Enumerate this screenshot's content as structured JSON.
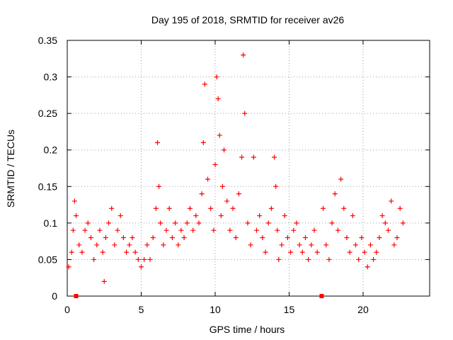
{
  "chart_data": {
    "type": "scatter",
    "title": "Day 195 of 2018, SRMTID for receiver av26",
    "xlabel": "GPS time / hours",
    "ylabel": "SRMTID / TECUs",
    "xlim": [
      0,
      24.5
    ],
    "ylim": [
      0,
      0.35
    ],
    "xticks": [
      0,
      5,
      10,
      15,
      20
    ],
    "xtick_labels": [
      "0",
      "5",
      "10",
      "15",
      "20"
    ],
    "yticks": [
      0,
      0.05,
      0.1,
      0.15,
      0.2,
      0.25,
      0.3,
      0.35
    ],
    "ytick_labels": [
      "0",
      "0.05",
      "0.1",
      "0.15",
      "0.2",
      "0.25",
      "0.3",
      "0.35"
    ],
    "grid": true,
    "marker": "plus",
    "color": "#ff0000",
    "gap_marks_x": [
      0.6,
      17.2
    ],
    "series": [
      {
        "name": "SRMTID",
        "x": [
          0.1,
          0.3,
          0.4,
          0.5,
          0.6,
          0.8,
          1.0,
          1.2,
          1.4,
          1.6,
          1.8,
          2.0,
          2.2,
          2.4,
          2.5,
          2.6,
          2.8,
          3.0,
          3.2,
          3.4,
          3.6,
          3.8,
          4.0,
          4.2,
          4.4,
          4.6,
          4.8,
          5.0,
          5.2,
          5.4,
          5.6,
          5.8,
          6.0,
          6.1,
          6.2,
          6.3,
          6.5,
          6.7,
          6.9,
          7.1,
          7.3,
          7.5,
          7.7,
          7.9,
          8.1,
          8.3,
          8.5,
          8.7,
          8.9,
          9.1,
          9.2,
          9.3,
          9.5,
          9.7,
          9.9,
          10.0,
          10.1,
          10.2,
          10.3,
          10.4,
          10.5,
          10.6,
          10.8,
          11.0,
          11.2,
          11.4,
          11.6,
          11.8,
          11.9,
          12.0,
          12.2,
          12.4,
          12.6,
          12.8,
          13.0,
          13.2,
          13.4,
          13.6,
          13.8,
          14.0,
          14.1,
          14.2,
          14.3,
          14.5,
          14.7,
          14.9,
          15.1,
          15.3,
          15.5,
          15.7,
          15.9,
          16.1,
          16.3,
          16.5,
          16.7,
          16.9,
          17.3,
          17.5,
          17.7,
          17.9,
          18.1,
          18.3,
          18.5,
          18.7,
          18.9,
          19.1,
          19.3,
          19.5,
          19.7,
          19.9,
          20.1,
          20.3,
          20.5,
          20.7,
          20.9,
          21.1,
          21.3,
          21.5,
          21.7,
          21.9,
          22.1,
          22.3,
          22.5,
          22.7
        ],
        "y": [
          0.04,
          0.06,
          0.09,
          0.13,
          0.11,
          0.07,
          0.06,
          0.09,
          0.1,
          0.08,
          0.05,
          0.07,
          0.09,
          0.06,
          0.02,
          0.08,
          0.1,
          0.12,
          0.07,
          0.09,
          0.11,
          0.08,
          0.06,
          0.07,
          0.08,
          0.06,
          0.05,
          0.04,
          0.05,
          0.07,
          0.05,
          0.08,
          0.12,
          0.21,
          0.15,
          0.1,
          0.07,
          0.09,
          0.12,
          0.08,
          0.1,
          0.07,
          0.09,
          0.08,
          0.1,
          0.12,
          0.09,
          0.11,
          0.1,
          0.14,
          0.21,
          0.29,
          0.16,
          0.12,
          0.09,
          0.18,
          0.3,
          0.27,
          0.22,
          0.11,
          0.15,
          0.2,
          0.13,
          0.09,
          0.12,
          0.08,
          0.14,
          0.19,
          0.33,
          0.25,
          0.1,
          0.07,
          0.19,
          0.09,
          0.11,
          0.08,
          0.06,
          0.1,
          0.12,
          0.19,
          0.15,
          0.09,
          0.05,
          0.07,
          0.11,
          0.08,
          0.06,
          0.09,
          0.1,
          0.07,
          0.06,
          0.08,
          0.05,
          0.07,
          0.09,
          0.06,
          0.12,
          0.07,
          0.05,
          0.1,
          0.14,
          0.09,
          0.16,
          0.12,
          0.08,
          0.06,
          0.11,
          0.07,
          0.05,
          0.08,
          0.06,
          0.04,
          0.07,
          0.05,
          0.06,
          0.08,
          0.11,
          0.1,
          0.09,
          0.13,
          0.07,
          0.08,
          0.12,
          0.1
        ]
      }
    ]
  }
}
